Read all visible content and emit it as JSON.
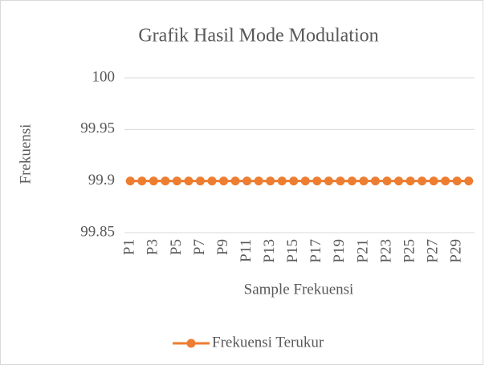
{
  "chart_data": {
    "type": "line",
    "title": "Grafik Hasil Mode Modulation",
    "x_label": "Sample Frekuensi",
    "y_label": "Frekuensi",
    "categories": [
      "P1",
      null,
      "P3",
      null,
      "P5",
      null,
      "P7",
      null,
      "P9",
      null,
      "P11",
      null,
      "P13",
      null,
      "P15",
      null,
      "P17",
      null,
      "P19",
      null,
      "P21",
      null,
      "P23",
      null,
      "P25",
      null,
      "P27",
      null,
      "P29",
      null
    ],
    "series": [
      {
        "name": "Frekuensi Terukur",
        "color": "#ed7d31",
        "values": [
          99.9,
          99.9,
          99.9,
          99.9,
          99.9,
          99.9,
          99.9,
          99.9,
          99.9,
          99.9,
          99.9,
          99.9,
          99.9,
          99.9,
          99.9,
          99.9,
          99.9,
          99.9,
          99.9,
          99.9,
          99.9,
          99.9,
          99.9,
          99.9,
          99.9,
          99.9,
          99.9,
          99.9,
          99.9,
          99.9
        ]
      }
    ],
    "ylim": [
      99.85,
      100
    ],
    "yticks": [
      99.85,
      99.9,
      99.95,
      100
    ],
    "grid": true,
    "legend": "bottom"
  }
}
